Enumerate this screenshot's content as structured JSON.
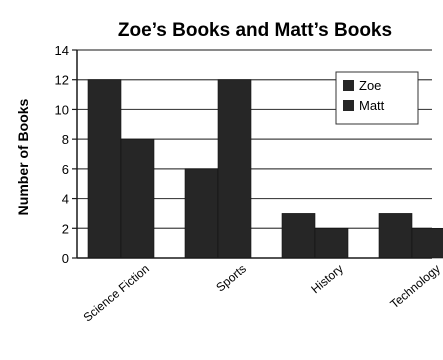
{
  "chart_data": {
    "type": "bar",
    "title": "Zoe’s Books and Matt’s Books",
    "xlabel": "",
    "ylabel": "Number of Books",
    "categories": [
      "Science Fiction",
      "Sports",
      "History",
      "Technology"
    ],
    "series": [
      {
        "name": "Zoe",
        "values": [
          12,
          6,
          3,
          3
        ]
      },
      {
        "name": "Matt",
        "values": [
          8,
          12,
          2,
          2
        ]
      }
    ],
    "ylim": [
      0,
      14
    ],
    "yticks": [
      0,
      2,
      4,
      6,
      8,
      10,
      12,
      14
    ],
    "grid": true,
    "legend": "top-right",
    "colors": {
      "bars": "#262626",
      "grid": "#444444",
      "background": "#ffffff"
    }
  }
}
